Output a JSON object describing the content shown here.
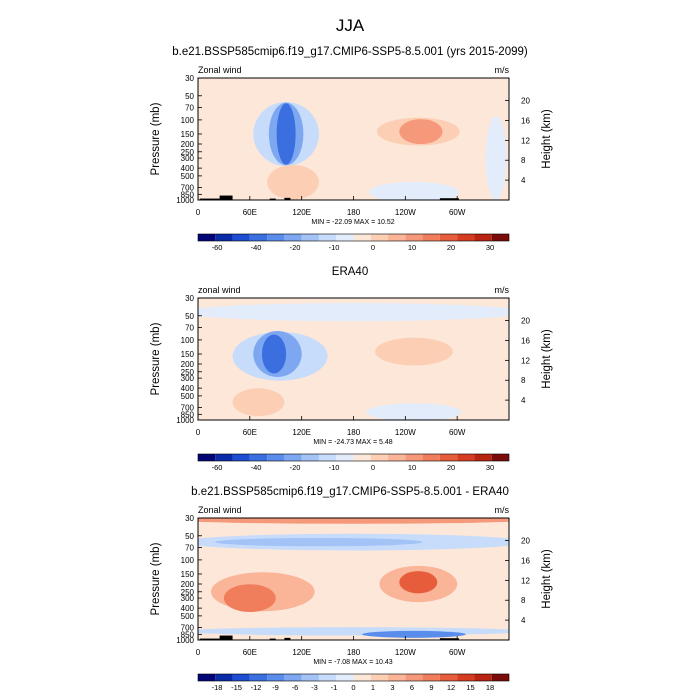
{
  "figure": {
    "title": "JJA",
    "colors": {
      "frame": "#000000",
      "topography": "#000000"
    }
  },
  "chart_data": [
    {
      "type": "heatmap",
      "title": "b.e21.BSSP585cmip6.f19_g17.CMIP6-SSP5-8.5.001 (yrs 2015-2099)",
      "left_label": "Zonal wind",
      "right_label": "m/s",
      "xlabel": "",
      "ylabel": "Pressure (mb)",
      "ylabel_right": "Height (km)",
      "x_ticks": [
        "0",
        "60E",
        "120E",
        "180",
        "120W",
        "60W"
      ],
      "x_tick_lons": [
        0,
        60,
        120,
        180,
        240,
        300
      ],
      "xlim": [
        0,
        360
      ],
      "ylim_mb": [
        1000,
        30
      ],
      "y_scale": "log",
      "y_ticks": [
        "30",
        "50",
        "70",
        "100",
        "150",
        "200",
        "250",
        "300",
        "400",
        "500",
        "700",
        "850",
        "1000"
      ],
      "y_tick_values": [
        30,
        50,
        70,
        100,
        150,
        200,
        250,
        300,
        400,
        500,
        700,
        850,
        1000
      ],
      "y_ticks_right": [
        "20",
        "16",
        "12",
        "8",
        "4"
      ],
      "y_tick_right_km": [
        20,
        16,
        12,
        8,
        4
      ],
      "stats": "MIN = -22.09  MAX = 10.52",
      "colorbar": {
        "levels": [
          "-60",
          "-40",
          "-20",
          "-10",
          "0",
          "10",
          "20",
          "30"
        ],
        "colors": [
          "#020573",
          "#0a2ba8",
          "#1d4ed1",
          "#3b6fe0",
          "#5a8ceb",
          "#7ea7f2",
          "#a3c3f7",
          "#c7dcfa",
          "#e2ecfb",
          "#fde7d9",
          "#fccfb5",
          "#fab497",
          "#f6997a",
          "#f07d5c",
          "#e75d3b",
          "#d63c22",
          "#b72412",
          "#7a0d0b"
        ]
      },
      "background": "#fde7d9",
      "grid": false,
      "features": [
        {
          "lon": 102,
          "mb": 150,
          "rx_deg": 38,
          "level": 0.92,
          "value": -22.09,
          "color": "#c7dcfa"
        },
        {
          "lon": 102,
          "mb": 150,
          "rx_deg": 20,
          "level": 0.9,
          "value": -15,
          "color": "#7ea7f2"
        },
        {
          "lon": 102,
          "mb": 150,
          "rx_deg": 11,
          "level": 0.88,
          "value": -22,
          "color": "#3b6fe0"
        },
        {
          "lon": 110,
          "mb": 600,
          "rx_deg": 30,
          "level": 0.5,
          "value": 4,
          "color": "#fccfb5"
        },
        {
          "lon": 255,
          "mb": 140,
          "rx_deg": 48,
          "level": 0.4,
          "value": 6,
          "color": "#fccfb5"
        },
        {
          "lon": 258,
          "mb": 140,
          "rx_deg": 25,
          "level": 0.36,
          "value": 10.52,
          "color": "#f6997a"
        },
        {
          "lon": 250,
          "mb": 800,
          "rx_deg": 52,
          "level": 0.3,
          "value": -3,
          "color": "#e2ecfb"
        },
        {
          "lon": 345,
          "mb": 300,
          "rx_deg": 12,
          "level": 1.2,
          "value": -3,
          "color": "#e2ecfb"
        }
      ]
    },
    {
      "type": "heatmap",
      "title": "ERA40",
      "left_label": "zonal wind",
      "right_label": "m/s",
      "xlabel": "",
      "ylabel": "Pressure (mb)",
      "ylabel_right": "Height (km)",
      "x_ticks": [
        "0",
        "60E",
        "120E",
        "180",
        "120W",
        "60W"
      ],
      "x_tick_lons": [
        0,
        60,
        120,
        180,
        240,
        300
      ],
      "xlim": [
        0,
        360
      ],
      "ylim_mb": [
        1000,
        30
      ],
      "y_scale": "log",
      "y_ticks": [
        "30",
        "50",
        "70",
        "100",
        "150",
        "200",
        "250",
        "300",
        "400",
        "500",
        "700",
        "850",
        "1000"
      ],
      "y_tick_values": [
        30,
        50,
        70,
        100,
        150,
        200,
        250,
        300,
        400,
        500,
        700,
        850,
        1000
      ],
      "y_ticks_right": [
        "20",
        "16",
        "12",
        "8",
        "4"
      ],
      "y_tick_right_km": [
        20,
        16,
        12,
        8,
        4
      ],
      "stats": "MIN = -24.73  MAX =  5.48",
      "colorbar": {
        "levels": [
          "-60",
          "-40",
          "-20",
          "-10",
          "0",
          "10",
          "20",
          "30"
        ],
        "colors": [
          "#020573",
          "#0a2ba8",
          "#1d4ed1",
          "#3b6fe0",
          "#5a8ceb",
          "#7ea7f2",
          "#a3c3f7",
          "#c7dcfa",
          "#e2ecfb",
          "#fde7d9",
          "#fccfb5",
          "#fab497",
          "#f6997a",
          "#f07d5c",
          "#e75d3b",
          "#d63c22",
          "#b72412",
          "#7a0d0b"
        ]
      },
      "background": "#fde7d9",
      "grid": false,
      "features": [
        {
          "lon": 180,
          "mb": 45,
          "rx_deg": 200,
          "level": 0.26,
          "value": -4,
          "color": "#e2ecfb"
        },
        {
          "lon": 95,
          "mb": 160,
          "rx_deg": 55,
          "level": 0.7,
          "value": -5,
          "color": "#c7dcfa"
        },
        {
          "lon": 92,
          "mb": 150,
          "rx_deg": 28,
          "level": 0.66,
          "value": -12,
          "color": "#7ea7f2"
        },
        {
          "lon": 88,
          "mb": 150,
          "rx_deg": 14,
          "level": 0.56,
          "value": -24.73,
          "color": "#3b6fe0"
        },
        {
          "lon": 250,
          "mb": 140,
          "rx_deg": 45,
          "level": 0.4,
          "value": 5.48,
          "color": "#fccfb5"
        },
        {
          "lon": 70,
          "mb": 600,
          "rx_deg": 30,
          "level": 0.4,
          "value": 3,
          "color": "#fccfb5"
        },
        {
          "lon": 250,
          "mb": 800,
          "rx_deg": 55,
          "level": 0.26,
          "value": -2,
          "color": "#e2ecfb"
        }
      ]
    },
    {
      "type": "heatmap",
      "title": "b.e21.BSSP585cmip6.f19_g17.CMIP6-SSP5-8.5.001 - ERA40",
      "left_label": "Zonal wind",
      "right_label": "m/s",
      "xlabel": "",
      "ylabel": "Pressure (mb)",
      "ylabel_right": "Height (km)",
      "x_ticks": [
        "0",
        "60E",
        "120E",
        "180",
        "120W",
        "60W"
      ],
      "x_tick_lons": [
        0,
        60,
        120,
        180,
        240,
        300
      ],
      "xlim": [
        0,
        360
      ],
      "ylim_mb": [
        1000,
        30
      ],
      "y_scale": "log",
      "y_ticks": [
        "30",
        "50",
        "70",
        "100",
        "150",
        "200",
        "250",
        "300",
        "400",
        "500",
        "700",
        "850",
        "1000"
      ],
      "y_tick_values": [
        30,
        50,
        70,
        100,
        150,
        200,
        250,
        300,
        400,
        500,
        700,
        850,
        1000
      ],
      "y_ticks_right": [
        "20",
        "16",
        "12",
        "8",
        "4"
      ],
      "y_tick_right_km": [
        20,
        16,
        12,
        8,
        4
      ],
      "stats": "MIN =  -7.08  MAX = 10.43",
      "colorbar": {
        "levels": [
          "-18",
          "-15",
          "-12",
          "-9",
          "-6",
          "-3",
          "-1",
          "0",
          "1",
          "3",
          "6",
          "9",
          "12",
          "15",
          "18"
        ],
        "colors": [
          "#020573",
          "#0a2ba8",
          "#1d4ed1",
          "#3b6fe0",
          "#5a8ceb",
          "#7ea7f2",
          "#a3c3f7",
          "#c7dcfa",
          "#e2ecfb",
          "#fde7d9",
          "#fccfb5",
          "#fab497",
          "#f6997a",
          "#f07d5c",
          "#e75d3b",
          "#d63c22",
          "#b72412",
          "#7a0d0b"
        ]
      },
      "background": "#fde7d9",
      "grid": false,
      "features": [
        {
          "lon": 180,
          "mb": 60,
          "rx_deg": 200,
          "level": 0.24,
          "value": -3,
          "color": "#c7dcfa"
        },
        {
          "lon": 140,
          "mb": 60,
          "rx_deg": 120,
          "level": 0.12,
          "value": -5,
          "color": "#a3c3f7"
        },
        {
          "lon": 180,
          "mb": 32,
          "rx_deg": 200,
          "level": 0.1,
          "value": 6,
          "color": "#f6997a"
        },
        {
          "lon": 75,
          "mb": 250,
          "rx_deg": 60,
          "level": 0.56,
          "value": 4,
          "color": "#fab497"
        },
        {
          "lon": 60,
          "mb": 300,
          "rx_deg": 30,
          "level": 0.4,
          "value": 7,
          "color": "#f07d5c"
        },
        {
          "lon": 255,
          "mb": 200,
          "rx_deg": 45,
          "level": 0.52,
          "value": 5,
          "color": "#fab497"
        },
        {
          "lon": 255,
          "mb": 190,
          "rx_deg": 22,
          "level": 0.32,
          "value": 10.43,
          "color": "#e75d3b"
        },
        {
          "lon": 180,
          "mb": 780,
          "rx_deg": 200,
          "level": 0.12,
          "value": -2,
          "color": "#c7dcfa"
        },
        {
          "lon": 250,
          "mb": 850,
          "rx_deg": 60,
          "level": 0.1,
          "value": -7.08,
          "color": "#5a8ceb"
        }
      ]
    }
  ],
  "topography": [
    {
      "lon0": 2,
      "lon1": 25,
      "mb": 960
    },
    {
      "lon0": 25,
      "lon1": 40,
      "mb": 880
    },
    {
      "lon0": 83,
      "lon1": 90,
      "mb": 960
    },
    {
      "lon0": 100,
      "lon1": 107,
      "mb": 940
    },
    {
      "lon0": 280,
      "lon1": 302,
      "mb": 950
    }
  ]
}
